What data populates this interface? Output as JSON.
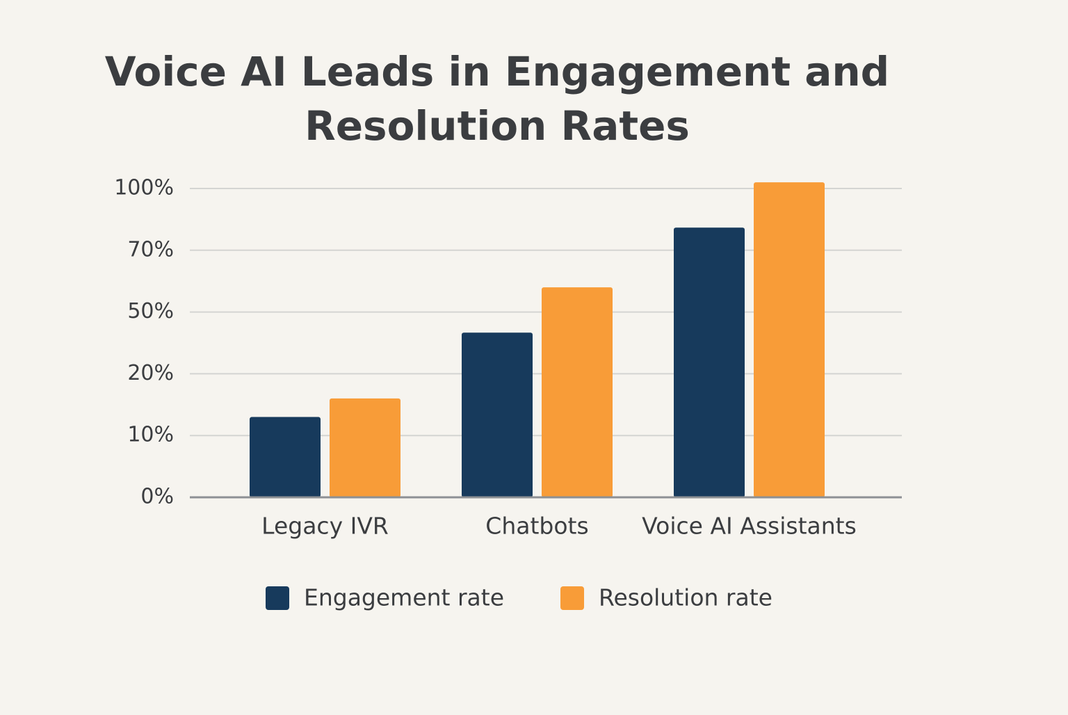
{
  "chart_data": {
    "type": "bar",
    "title": "Voice AI Leads in Engagement and Resolution Rates",
    "categories": [
      "Legacy IVR",
      "Chatbots",
      "Voice AI Assistants"
    ],
    "series": [
      {
        "name": "Engagement rate",
        "color": "#173a5c",
        "values": [
          13,
          40,
          81
        ]
      },
      {
        "name": "Resolution rate",
        "color": "#f89c38",
        "values": [
          16,
          58,
          103
        ]
      }
    ],
    "ylim": [
      0,
      105
    ],
    "yticks": [
      {
        "value": 0,
        "label": "0%"
      },
      {
        "value": 10,
        "label": "10%"
      },
      {
        "value": 20,
        "label": "20%"
      },
      {
        "value": 50,
        "label": "50%"
      },
      {
        "value": 70,
        "label": "70%"
      },
      {
        "value": 100,
        "label": "100%"
      }
    ],
    "grid": true
  }
}
